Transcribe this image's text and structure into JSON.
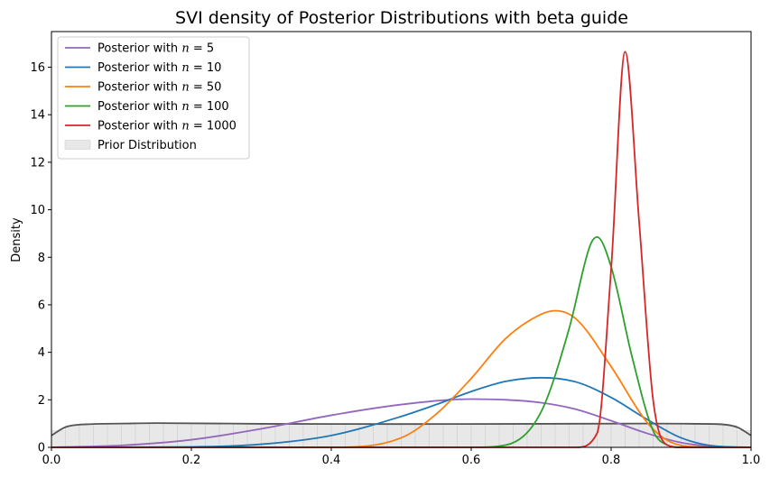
{
  "chart_data": {
    "type": "line",
    "title": "SVI density of Posterior Distributions with beta guide",
    "xlabel": "",
    "ylabel": "Density",
    "xlim": [
      0.0,
      1.0
    ],
    "ylim": [
      0,
      17.5
    ],
    "xticks": [
      "0.0",
      "0.2",
      "0.4",
      "0.6",
      "0.8",
      "1.0"
    ],
    "yticks": [
      "0",
      "2",
      "4",
      "6",
      "8",
      "10",
      "12",
      "14",
      "16"
    ],
    "grid": false,
    "legend_position": "top-left",
    "series": [
      {
        "name": "Posterior with n = 5",
        "legend_prefix": "Posterior with ",
        "legend_math": "n = 5",
        "color": "#9467bd",
        "peak_x": 0.6,
        "peak_y": 2.03,
        "points": [
          [
            0.0,
            0.0
          ],
          [
            0.1,
            0.08
          ],
          [
            0.2,
            0.32
          ],
          [
            0.3,
            0.78
          ],
          [
            0.4,
            1.35
          ],
          [
            0.5,
            1.8
          ],
          [
            0.6,
            2.03
          ],
          [
            0.65,
            2.0
          ],
          [
            0.7,
            1.88
          ],
          [
            0.75,
            1.6
          ],
          [
            0.8,
            1.12
          ],
          [
            0.85,
            0.6
          ],
          [
            0.9,
            0.2
          ],
          [
            0.95,
            0.03
          ],
          [
            1.0,
            0.0
          ]
        ]
      },
      {
        "name": "Posterior with n = 10",
        "legend_prefix": "Posterior with ",
        "legend_math": "n = 10",
        "color": "#1f77b4",
        "peak_x": 0.7,
        "peak_y": 2.93,
        "points": [
          [
            0.0,
            0.0
          ],
          [
            0.2,
            0.02
          ],
          [
            0.3,
            0.13
          ],
          [
            0.4,
            0.5
          ],
          [
            0.5,
            1.3
          ],
          [
            0.55,
            1.8
          ],
          [
            0.6,
            2.35
          ],
          [
            0.65,
            2.78
          ],
          [
            0.7,
            2.93
          ],
          [
            0.75,
            2.75
          ],
          [
            0.8,
            2.1
          ],
          [
            0.85,
            1.2
          ],
          [
            0.9,
            0.4
          ],
          [
            0.95,
            0.05
          ],
          [
            1.0,
            0.0
          ]
        ]
      },
      {
        "name": "Posterior with n = 50",
        "legend_prefix": "Posterior with ",
        "legend_math": "n = 50",
        "color": "#ff7f0e",
        "peak_x": 0.72,
        "peak_y": 5.75,
        "points": [
          [
            0.0,
            0.0
          ],
          [
            0.4,
            0.0
          ],
          [
            0.5,
            0.4
          ],
          [
            0.55,
            1.4
          ],
          [
            0.6,
            2.9
          ],
          [
            0.65,
            4.6
          ],
          [
            0.7,
            5.6
          ],
          [
            0.72,
            5.75
          ],
          [
            0.75,
            5.4
          ],
          [
            0.8,
            3.4
          ],
          [
            0.85,
            1.1
          ],
          [
            0.88,
            0.3
          ],
          [
            0.92,
            0.02
          ],
          [
            1.0,
            0.0
          ]
        ]
      },
      {
        "name": "Posterior with n = 100",
        "legend_prefix": "Posterior with ",
        "legend_math": "n = 100",
        "color": "#2ca02c",
        "peak_x": 0.78,
        "peak_y": 8.85,
        "points": [
          [
            0.0,
            0.0
          ],
          [
            0.6,
            0.0
          ],
          [
            0.65,
            0.1
          ],
          [
            0.7,
            1.5
          ],
          [
            0.74,
            5.0
          ],
          [
            0.77,
            8.5
          ],
          [
            0.78,
            8.85
          ],
          [
            0.8,
            7.6
          ],
          [
            0.83,
            3.8
          ],
          [
            0.86,
            0.7
          ],
          [
            0.88,
            0.1
          ],
          [
            0.9,
            0.0
          ],
          [
            1.0,
            0.0
          ]
        ]
      },
      {
        "name": "Posterior with n = 1000",
        "legend_prefix": "Posterior with ",
        "legend_math": "n = 1000",
        "color": "#d62728",
        "peak_x": 0.82,
        "peak_y": 16.65,
        "points": [
          [
            0.0,
            0.0
          ],
          [
            0.75,
            0.0
          ],
          [
            0.78,
            0.6
          ],
          [
            0.8,
            7.5
          ],
          [
            0.82,
            16.65
          ],
          [
            0.84,
            9.5
          ],
          [
            0.86,
            2.0
          ],
          [
            0.88,
            0.1
          ],
          [
            0.9,
            0.0
          ],
          [
            1.0,
            0.0
          ]
        ]
      }
    ],
    "prior": {
      "name": "Prior Distribution",
      "fill_color": "#e8e8e8",
      "line_color": "#555555",
      "points": [
        [
          0.0,
          0.5
        ],
        [
          0.02,
          0.85
        ],
        [
          0.05,
          0.97
        ],
        [
          0.1,
          1.0
        ],
        [
          0.15,
          1.02
        ],
        [
          0.3,
          0.99
        ],
        [
          0.5,
          0.98
        ],
        [
          0.7,
          0.99
        ],
        [
          0.85,
          1.0
        ],
        [
          0.95,
          0.98
        ],
        [
          0.98,
          0.85
        ],
        [
          1.0,
          0.5
        ]
      ]
    }
  }
}
